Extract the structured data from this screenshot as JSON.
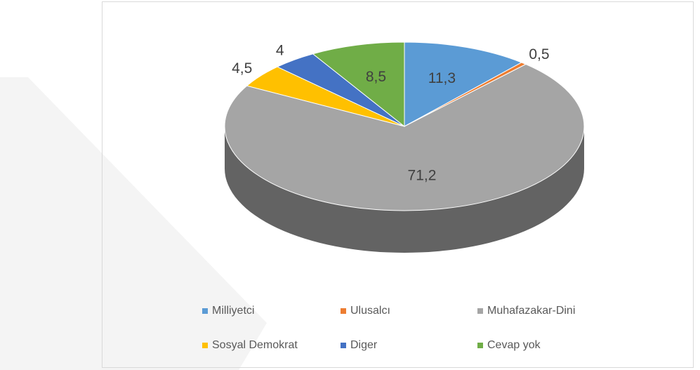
{
  "chart_data": {
    "type": "pie",
    "categories": [
      "Milliyetci",
      "Ulusalcı",
      "Muhafazakar-Dini",
      "Sosyal Demokrat",
      "Diger",
      "Cevap yok"
    ],
    "values": [
      11.3,
      0.5,
      71.2,
      4.5,
      4,
      8.5
    ],
    "value_labels": [
      "11,3",
      "0,5",
      "71,2",
      "4,5",
      "4",
      "8,5"
    ],
    "colors": [
      "#5b9bd5",
      "#ed7d31",
      "#a5a5a5",
      "#ffc000",
      "#4472c4",
      "#70ad47"
    ],
    "legend": "bottom"
  }
}
